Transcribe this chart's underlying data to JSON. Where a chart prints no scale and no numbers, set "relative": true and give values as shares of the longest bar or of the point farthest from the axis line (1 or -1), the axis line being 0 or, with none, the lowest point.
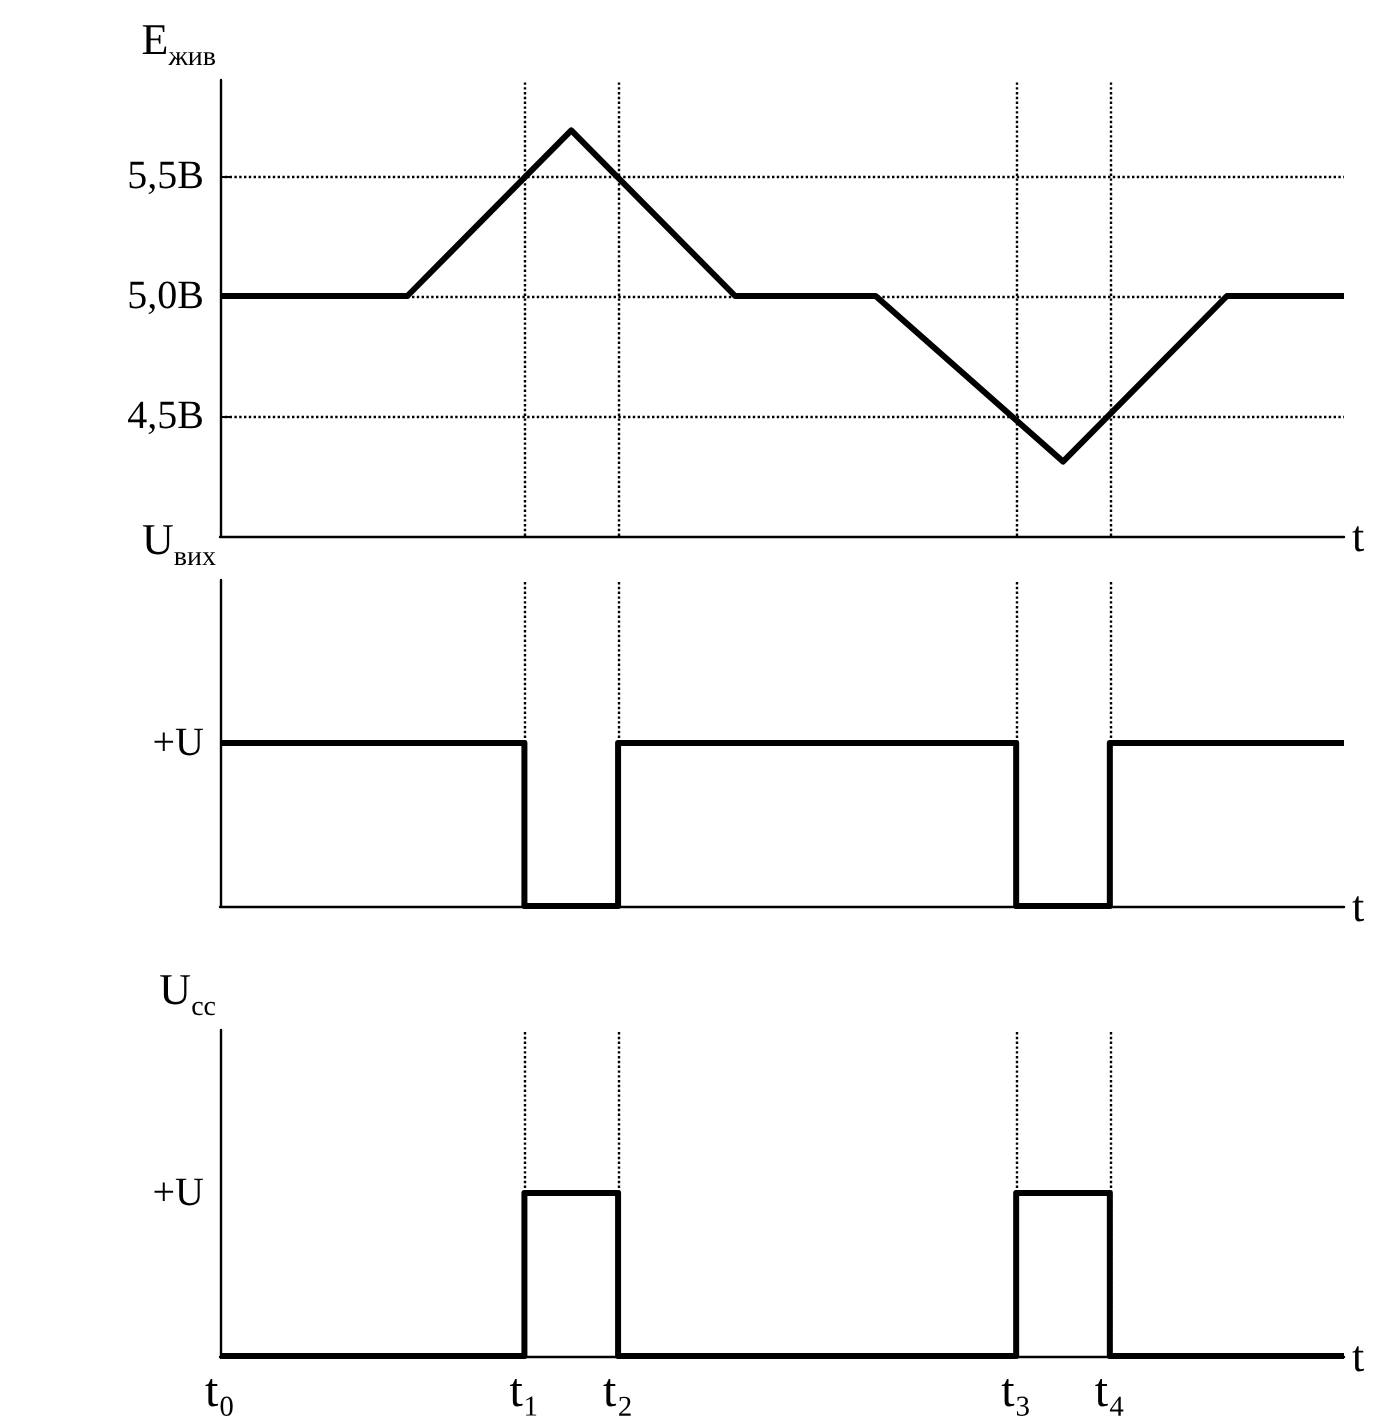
{
  "chart_data": [
    {
      "type": "line",
      "ylabel": "E$_{жив}$",
      "xlabel": "t",
      "color": "#000000",
      "marker": "none",
      "grid": "y",
      "tick_labels": "y",
      "ylim": [
        4.0,
        5.9
      ],
      "yticks": [
        {
          "value": 4.5,
          "label": "4,5В"
        },
        {
          "value": 5.0,
          "label": "5,0В"
        },
        {
          "value": 5.5,
          "label": "5,5В"
        }
      ],
      "categories": [
        "t₀",
        null,
        null,
        null,
        null,
        null,
        null,
        null,
        null,
        null,
        null,
        null,
        null,
        "t₁",
        null,
        null,
        null,
        "t₂",
        null,
        null,
        null,
        null,
        null,
        null,
        null,
        null,
        null,
        null,
        null,
        null,
        null,
        null,
        null,
        null,
        "t₃",
        null,
        null,
        null,
        "t₄",
        null,
        null,
        null,
        null,
        null,
        null,
        null,
        null,
        null,
        null
      ],
      "values": [
        5.0,
        null,
        null,
        null,
        null,
        null,
        null,
        null,
        5.0,
        null,
        null,
        null,
        null,
        null,
        null,
        5.69,
        null,
        null,
        null,
        null,
        null,
        null,
        5.0,
        null,
        null,
        null,
        null,
        null,
        5.0,
        null,
        null,
        null,
        null,
        null,
        null,
        null,
        4.31,
        null,
        null,
        null,
        null,
        null,
        null,
        5.0,
        null,
        null,
        null,
        null,
        5.0
      ],
      "ref_lines": [
        {
          "axis": "x",
          "value": "t₁",
          "line_style": "dotted",
          "color": "#000000"
        },
        {
          "axis": "x",
          "value": "t₂",
          "line_style": "dotted",
          "color": "#000000"
        },
        {
          "axis": "x",
          "value": "t₃",
          "line_style": "dotted",
          "color": "#000000"
        },
        {
          "axis": "x",
          "value": "t₄",
          "line_style": "dotted",
          "color": "#000000"
        }
      ]
    },
    {
      "type": "step",
      "relative": true,
      "ylabel": "U$_{вих}$",
      "xlabel": "t",
      "color": "#000000",
      "marker": "none",
      "tick_labels": false,
      "annotations": [
        "+U"
      ],
      "categories": [
        "t₀",
        null,
        null,
        null,
        null,
        null,
        null,
        null,
        null,
        null,
        null,
        null,
        null,
        "t₁",
        null,
        null,
        null,
        "t₂",
        null,
        null,
        null,
        null,
        null,
        null,
        null,
        null,
        null,
        null,
        null,
        null,
        null,
        null,
        null,
        null,
        "t₃",
        null,
        null,
        null,
        "t₄",
        null,
        null,
        null,
        null,
        null,
        null,
        null,
        null,
        null,
        null
      ],
      "values": [
        1,
        1,
        1,
        1,
        1,
        1,
        1,
        1,
        1,
        1,
        1,
        1,
        1,
        0,
        0,
        0,
        0,
        1,
        1,
        1,
        1,
        1,
        1,
        1,
        1,
        1,
        1,
        1,
        1,
        1,
        1,
        1,
        1,
        1,
        0,
        0,
        0,
        0,
        1,
        1,
        1,
        1,
        1,
        1,
        1,
        1,
        1,
        1,
        1
      ],
      "ref_lines": [
        {
          "axis": "x",
          "value": "t₁",
          "line_style": "dotted",
          "color": "#000000"
        },
        {
          "axis": "x",
          "value": "t₂",
          "line_style": "dotted",
          "color": "#000000"
        },
        {
          "axis": "x",
          "value": "t₃",
          "line_style": "dotted",
          "color": "#000000"
        },
        {
          "axis": "x",
          "value": "t₄",
          "line_style": "dotted",
          "color": "#000000"
        }
      ]
    },
    {
      "type": "step",
      "relative": true,
      "ylabel": "U$_{сс}$",
      "xlabel": "t",
      "color": "#000000",
      "marker": "none",
      "tick_labels": "x",
      "annotations": [
        "+U"
      ],
      "categories": [
        "t₀",
        null,
        null,
        null,
        null,
        null,
        null,
        null,
        null,
        null,
        null,
        null,
        null,
        "t₁",
        null,
        null,
        null,
        "t₂",
        null,
        null,
        null,
        null,
        null,
        null,
        null,
        null,
        null,
        null,
        null,
        null,
        null,
        null,
        null,
        null,
        "t₃",
        null,
        null,
        null,
        "t₄",
        null,
        null,
        null,
        null,
        null,
        null,
        null,
        null,
        null,
        null
      ],
      "values": [
        0,
        0,
        0,
        0,
        0,
        0,
        0,
        0,
        0,
        0,
        0,
        0,
        0,
        1,
        1,
        1,
        1,
        0,
        0,
        0,
        0,
        0,
        0,
        0,
        0,
        0,
        0,
        0,
        0,
        0,
        0,
        0,
        0,
        0,
        1,
        1,
        1,
        1,
        0,
        0,
        0,
        0,
        0,
        0,
        0,
        0,
        0,
        0,
        0
      ],
      "ref_lines": [
        {
          "axis": "x",
          "value": "t₁",
          "line_style": "dotted",
          "color": "#000000"
        },
        {
          "axis": "x",
          "value": "t₂",
          "line_style": "dotted",
          "color": "#000000"
        },
        {
          "axis": "x",
          "value": "t₃",
          "line_style": "dotted",
          "color": "#000000"
        },
        {
          "axis": "x",
          "value": "t₄",
          "line_style": "dotted",
          "color": "#000000"
        }
      ]
    }
  ]
}
